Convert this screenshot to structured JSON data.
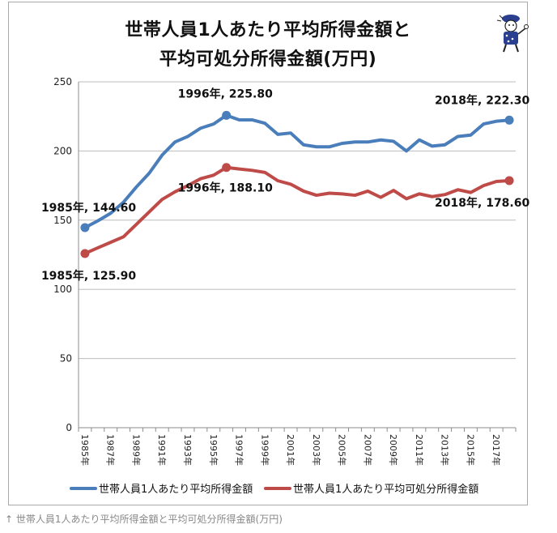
{
  "title_lines": [
    "世帯人員1人あたり平均所得金額と",
    "平均可処分所得金額(万円)"
  ],
  "caption": "↑ 世帯人員1人あたり平均所得金額と平均可処分所得金額(万円)",
  "chart_data": {
    "type": "line",
    "title": "世帯人員1人あたり平均所得金額と平均可処分所得金額(万円)",
    "x": [
      1985,
      1986,
      1987,
      1988,
      1989,
      1990,
      1991,
      1992,
      1993,
      1994,
      1995,
      1996,
      1997,
      1998,
      1999,
      2000,
      2001,
      2002,
      2003,
      2004,
      2005,
      2006,
      2007,
      2008,
      2009,
      2010,
      2011,
      2012,
      2013,
      2014,
      2015,
      2016,
      2017,
      2018
    ],
    "xtick_labels": [
      "1985年",
      "1987年",
      "1989年",
      "1991年",
      "1993年",
      "1995年",
      "1997年",
      "1999年",
      "2001年",
      "2003年",
      "2005年",
      "2007年",
      "2009年",
      "2011年",
      "2013年",
      "2015年",
      "2017年"
    ],
    "ylim": [
      0,
      250
    ],
    "yticks": [
      0,
      50,
      100,
      150,
      200,
      250
    ],
    "grid": "horizontal",
    "legend_position": "bottom",
    "series": [
      {
        "name": "世帯人員1人あたり平均所得金額",
        "color": "#4a7ebb",
        "values": [
          144.6,
          149.5,
          155.0,
          163.0,
          174.0,
          184.0,
          197.0,
          206.5,
          210.5,
          216.5,
          219.5,
          225.8,
          222.5,
          222.5,
          220.0,
          212.0,
          213.0,
          204.5,
          203.0,
          203.0,
          205.5,
          206.5,
          206.5,
          208.0,
          207.0,
          200.0,
          208.0,
          203.5,
          204.5,
          210.5,
          211.5,
          219.5,
          221.5,
          222.3
        ]
      },
      {
        "name": "世帯人員1人あたり平均可処分所得金額",
        "color": "#be4b48",
        "values": [
          125.9,
          130.0,
          134.0,
          138.0,
          147.0,
          156.0,
          165.0,
          170.5,
          175.0,
          180.0,
          182.5,
          188.1,
          187.0,
          186.0,
          184.5,
          178.5,
          176.0,
          171.0,
          168.0,
          169.5,
          169.0,
          168.0,
          171.0,
          166.5,
          171.5,
          165.5,
          169.0,
          167.0,
          168.5,
          172.0,
          170.0,
          175.0,
          178.0,
          178.6
        ]
      }
    ],
    "annotations": [
      {
        "series": 0,
        "x": 1985,
        "text": "1985年, 144.60"
      },
      {
        "series": 0,
        "x": 1996,
        "text": "1996年, 225.80"
      },
      {
        "series": 0,
        "x": 2018,
        "text": "2018年, 222.30"
      },
      {
        "series": 1,
        "x": 1985,
        "text": "1985年, 125.90"
      },
      {
        "series": 1,
        "x": 1996,
        "text": "1996年, 188.10"
      },
      {
        "series": 1,
        "x": 2018,
        "text": "2018年, 178.60"
      }
    ]
  }
}
